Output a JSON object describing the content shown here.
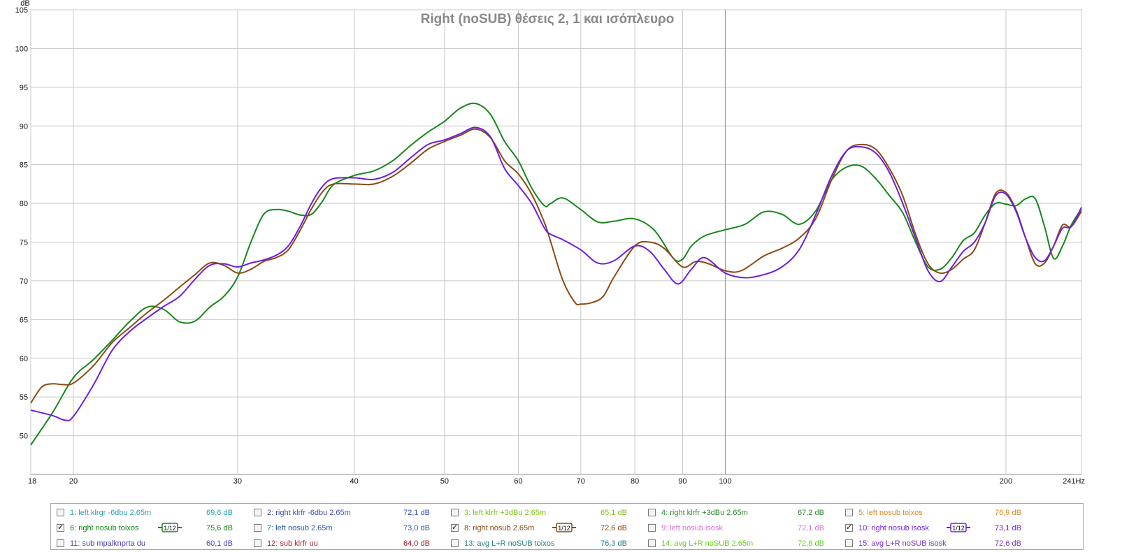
{
  "chart_data": {
    "type": "line",
    "title": "Right (noSUB) θέσεις 2, 1 και ισόπλευρο",
    "y_unit": "dB",
    "x_unit": "Hz",
    "x_scale": "log",
    "xlim": [
      18,
      241
    ],
    "ylim": [
      45,
      105
    ],
    "x_ticks": [
      18,
      20,
      30,
      40,
      50,
      60,
      70,
      80,
      90,
      100,
      200,
      241
    ],
    "x_tick_labels": [
      "18",
      "20",
      "30",
      "40",
      "50",
      "60",
      "70",
      "80",
      "90",
      "100",
      "200",
      "241Hz"
    ],
    "y_ticks": [
      50,
      55,
      60,
      65,
      70,
      75,
      80,
      85,
      90,
      95,
      100,
      105
    ],
    "y_tick_labels": [
      "50",
      "55",
      "60",
      "65",
      "70",
      "75",
      "80",
      "85",
      "90",
      "95",
      "100",
      "105"
    ],
    "grid": true,
    "series": [
      {
        "name": "6: right nosub toixos",
        "color": "#15881a",
        "points": [
          [
            18,
            48.8
          ],
          [
            19,
            53
          ],
          [
            20,
            57.5
          ],
          [
            21,
            59.8
          ],
          [
            22,
            62.3
          ],
          [
            23,
            64.8
          ],
          [
            24,
            66.6
          ],
          [
            25,
            66.3
          ],
          [
            26,
            64.7
          ],
          [
            27,
            64.8
          ],
          [
            28,
            66.6
          ],
          [
            29,
            68
          ],
          [
            30,
            70.5
          ],
          [
            31,
            75
          ],
          [
            32,
            78.6
          ],
          [
            33,
            79.2
          ],
          [
            34,
            79
          ],
          [
            35,
            78.5
          ],
          [
            36,
            78.6
          ],
          [
            37,
            80.3
          ],
          [
            38,
            82.4
          ],
          [
            40,
            83.6
          ],
          [
            42,
            84.2
          ],
          [
            44,
            85.5
          ],
          [
            46,
            87.5
          ],
          [
            48,
            89.2
          ],
          [
            50,
            90.6
          ],
          [
            52,
            92.3
          ],
          [
            54,
            92.9
          ],
          [
            56,
            91.5
          ],
          [
            58,
            88
          ],
          [
            60,
            85.5
          ],
          [
            62,
            82
          ],
          [
            64,
            79.7
          ],
          [
            65,
            80
          ],
          [
            67,
            80.7
          ],
          [
            70,
            79.2
          ],
          [
            73,
            77.6
          ],
          [
            76,
            77.7
          ],
          [
            80,
            78
          ],
          [
            84,
            76.5
          ],
          [
            88,
            72.9
          ],
          [
            90,
            72.8
          ],
          [
            92,
            74.5
          ],
          [
            95,
            75.8
          ],
          [
            100,
            76.6
          ],
          [
            105,
            77.3
          ],
          [
            110,
            78.9
          ],
          [
            115,
            78.6
          ],
          [
            120,
            77.3
          ],
          [
            125,
            79
          ],
          [
            130,
            83
          ],
          [
            135,
            84.7
          ],
          [
            140,
            84.8
          ],
          [
            145,
            83.2
          ],
          [
            150,
            81
          ],
          [
            155,
            78.8
          ],
          [
            160,
            75
          ],
          [
            165,
            71.8
          ],
          [
            170,
            71.5
          ],
          [
            175,
            73
          ],
          [
            180,
            75.2
          ],
          [
            185,
            76.2
          ],
          [
            190,
            78.5
          ],
          [
            195,
            80
          ],
          [
            200,
            79.9
          ],
          [
            205,
            79.7
          ],
          [
            210,
            80.6
          ],
          [
            215,
            80.6
          ],
          [
            220,
            77
          ],
          [
            225,
            72.9
          ],
          [
            230,
            74.5
          ],
          [
            235,
            77.2
          ],
          [
            241,
            79.3
          ]
        ]
      },
      {
        "name": "8: right nosub 2.65m",
        "color": "#8b4a12",
        "points": [
          [
            18,
            54.2
          ],
          [
            18.5,
            56.3
          ],
          [
            19,
            56.7
          ],
          [
            19.5,
            56.6
          ],
          [
            20,
            56.8
          ],
          [
            21,
            59
          ],
          [
            22,
            62
          ],
          [
            23,
            64
          ],
          [
            24,
            65.9
          ],
          [
            25,
            67.5
          ],
          [
            26,
            69.2
          ],
          [
            27,
            70.8
          ],
          [
            28,
            72.3
          ],
          [
            29,
            72
          ],
          [
            30,
            71
          ],
          [
            31,
            71.5
          ],
          [
            32,
            72.5
          ],
          [
            33,
            73
          ],
          [
            34,
            74
          ],
          [
            35,
            76.5
          ],
          [
            36,
            79.3
          ],
          [
            37,
            81.5
          ],
          [
            38,
            82.5
          ],
          [
            40,
            82.5
          ],
          [
            42,
            82.5
          ],
          [
            44,
            83.5
          ],
          [
            46,
            85.2
          ],
          [
            48,
            87
          ],
          [
            50,
            88
          ],
          [
            52,
            88.8
          ],
          [
            54,
            89.6
          ],
          [
            56,
            88.5
          ],
          [
            58,
            85.5
          ],
          [
            60,
            83.8
          ],
          [
            62,
            81.2
          ],
          [
            64,
            77.5
          ],
          [
            65,
            75
          ],
          [
            67,
            70
          ],
          [
            69,
            67.2
          ],
          [
            70,
            67
          ],
          [
            72,
            67.2
          ],
          [
            74,
            68
          ],
          [
            76,
            70.5
          ],
          [
            80,
            74.5
          ],
          [
            83,
            75
          ],
          [
            86,
            74.2
          ],
          [
            90,
            71.8
          ],
          [
            93,
            72.5
          ],
          [
            96,
            72.2
          ],
          [
            100,
            71.3
          ],
          [
            104,
            71.3
          ],
          [
            110,
            73.2
          ],
          [
            115,
            74.2
          ],
          [
            120,
            75.5
          ],
          [
            125,
            78
          ],
          [
            130,
            83
          ],
          [
            135,
            86.8
          ],
          [
            140,
            87.6
          ],
          [
            145,
            87
          ],
          [
            150,
            84.5
          ],
          [
            155,
            81
          ],
          [
            160,
            76
          ],
          [
            165,
            72.2
          ],
          [
            170,
            71
          ],
          [
            175,
            71.5
          ],
          [
            180,
            72.8
          ],
          [
            185,
            74
          ],
          [
            190,
            77.5
          ],
          [
            195,
            81.3
          ],
          [
            200,
            81.4
          ],
          [
            205,
            79.2
          ],
          [
            210,
            75.5
          ],
          [
            215,
            72.2
          ],
          [
            220,
            72.3
          ],
          [
            225,
            74.5
          ],
          [
            230,
            77.2
          ],
          [
            235,
            77
          ],
          [
            241,
            79
          ]
        ]
      },
      {
        "name": "10: right nosub isosk",
        "color": "#6e1fe0",
        "points": [
          [
            18,
            53.3
          ],
          [
            19,
            52.6
          ],
          [
            19.6,
            52
          ],
          [
            20,
            52.5
          ],
          [
            21,
            56.5
          ],
          [
            22,
            61
          ],
          [
            23,
            63.5
          ],
          [
            24,
            65.2
          ],
          [
            25,
            66.7
          ],
          [
            26,
            68
          ],
          [
            27,
            70.2
          ],
          [
            28,
            72
          ],
          [
            29,
            72.2
          ],
          [
            30,
            71.8
          ],
          [
            31,
            72.3
          ],
          [
            32,
            72.7
          ],
          [
            33,
            73.3
          ],
          [
            34,
            74.5
          ],
          [
            35,
            77
          ],
          [
            36,
            80
          ],
          [
            37,
            82.2
          ],
          [
            38,
            83.2
          ],
          [
            40,
            83.3
          ],
          [
            42,
            83.1
          ],
          [
            44,
            84
          ],
          [
            46,
            85.9
          ],
          [
            48,
            87.6
          ],
          [
            50,
            88.2
          ],
          [
            52,
            89
          ],
          [
            54,
            89.8
          ],
          [
            56,
            88.6
          ],
          [
            58,
            84.5
          ],
          [
            60,
            82.3
          ],
          [
            62,
            80
          ],
          [
            64,
            76.8
          ],
          [
            65,
            76
          ],
          [
            67,
            75.3
          ],
          [
            70,
            74
          ],
          [
            73,
            72.3
          ],
          [
            76,
            72.6
          ],
          [
            80,
            74.5
          ],
          [
            83,
            73.8
          ],
          [
            86,
            71.5
          ],
          [
            89,
            69.6
          ],
          [
            92,
            71.5
          ],
          [
            95,
            73
          ],
          [
            100,
            71
          ],
          [
            105,
            70.4
          ],
          [
            110,
            70.8
          ],
          [
            115,
            71.8
          ],
          [
            120,
            74
          ],
          [
            125,
            78.5
          ],
          [
            130,
            83.5
          ],
          [
            135,
            86.8
          ],
          [
            140,
            87.3
          ],
          [
            145,
            86.5
          ],
          [
            150,
            84
          ],
          [
            155,
            80
          ],
          [
            160,
            75.5
          ],
          [
            165,
            71.3
          ],
          [
            170,
            69.9
          ],
          [
            175,
            71.8
          ],
          [
            180,
            73.8
          ],
          [
            185,
            75
          ],
          [
            190,
            77.5
          ],
          [
            195,
            81
          ],
          [
            200,
            81.2
          ],
          [
            205,
            79
          ],
          [
            210,
            75.5
          ],
          [
            215,
            73
          ],
          [
            220,
            72.6
          ],
          [
            225,
            74.5
          ],
          [
            230,
            76.8
          ],
          [
            235,
            77
          ],
          [
            241,
            79.5
          ]
        ]
      }
    ]
  },
  "legend": {
    "smoothing_label": "1/12",
    "check_mark": "✓",
    "items": [
      {
        "id": 1,
        "label": "1: left klrgr -6dbu 2.65m",
        "value": "69,6 dB",
        "checked": false,
        "color": "#2a9fb8",
        "smooth": false
      },
      {
        "id": 2,
        "label": "2: right klrfr -6dbu 2.65m",
        "value": "72,1 dB",
        "checked": false,
        "color": "#3b4fb0",
        "smooth": false
      },
      {
        "id": 3,
        "label": "3: left klrfr +3dBu 2.65m",
        "value": "65,1 dB",
        "checked": false,
        "color": "#7fc319",
        "smooth": false
      },
      {
        "id": 4,
        "label": "4: right klrfr +3dBu 2.65m",
        "value": "67,2 dB",
        "checked": false,
        "color": "#2f8a2f",
        "smooth": false
      },
      {
        "id": 5,
        "label": "5: left nosub toixos",
        "value": "76,9 dB",
        "checked": false,
        "color": "#d8861f",
        "smooth": false
      },
      {
        "id": 6,
        "label": "6: right nosub toixos",
        "value": "75,6 dB",
        "checked": true,
        "color": "#15881a",
        "smooth": true
      },
      {
        "id": 7,
        "label": "7: left nosub 2.65m",
        "value": "73,0 dB",
        "checked": false,
        "color": "#2e5aa8",
        "smooth": false
      },
      {
        "id": 8,
        "label": "8: right nosub 2.65m",
        "value": "72,6 dB",
        "checked": true,
        "color": "#8b4a12",
        "smooth": true
      },
      {
        "id": 9,
        "label": "9: left nosub isosk",
        "value": "72,1 dB",
        "checked": false,
        "color": "#dd6fd8",
        "smooth": false
      },
      {
        "id": 10,
        "label": "10: right nosub isosk",
        "value": "73,1 dB",
        "checked": true,
        "color": "#6e1fe0",
        "smooth": true
      },
      {
        "id": 11,
        "label": "11: sub mpalknprta du",
        "value": "60,1 dB",
        "checked": false,
        "color": "#4a3fb8",
        "smooth": false
      },
      {
        "id": 12,
        "label": "12: sub klrfr uu",
        "value": "64,0 dB",
        "checked": false,
        "color": "#b0182a",
        "smooth": false
      },
      {
        "id": 13,
        "label": "13: avg L+R noSUB toixos",
        "value": "76,3 dB",
        "checked": false,
        "color": "#1f7f86",
        "smooth": false
      },
      {
        "id": 14,
        "label": "14: avg L+R noSUB 2.65m",
        "value": "72,8 dB",
        "checked": false,
        "color": "#5fd21a",
        "smooth": false
      },
      {
        "id": 15,
        "label": "15: avg L+R noSUB isosk",
        "value": "72,6 dB",
        "checked": false,
        "color": "#7a2fd0",
        "smooth": false
      }
    ]
  }
}
